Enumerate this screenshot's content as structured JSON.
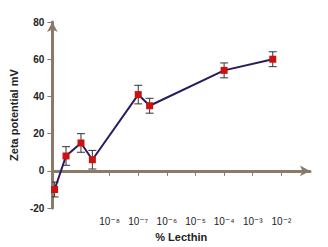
{
  "chart_data": {
    "type": "line",
    "x_label": "% Lecthin",
    "y_label": "Zeta potential mV",
    "log": "x",
    "grid": false,
    "x": [
      1.2e-10,
      3e-10,
      1e-09,
      2.5e-09,
      1e-07,
      2.5e-07,
      0.0001,
      0.005
    ],
    "series": [
      {
        "color": "#cc1111",
        "line_color": "#2b1a5c",
        "marker": "square",
        "values": [
          -10,
          8,
          15,
          6,
          41,
          35,
          54,
          60
        ],
        "errors": [
          4,
          5,
          5,
          5,
          5,
          4,
          4,
          4
        ]
      }
    ],
    "xlim": [
      1e-10,
      0.1
    ],
    "xticks": [
      {
        "value": 1e-08,
        "label": "10⁻⁸"
      },
      {
        "value": 1e-07,
        "label": "10⁻⁷"
      },
      {
        "value": 1e-06,
        "label": "10⁻⁶"
      },
      {
        "value": 1e-05,
        "label": "10⁻⁵"
      },
      {
        "value": 0.0001,
        "label": "10⁻⁴"
      },
      {
        "value": 0.001,
        "label": "10⁻³"
      },
      {
        "value": 0.01,
        "label": "10⁻²"
      }
    ],
    "ylim": [
      -20,
      80
    ],
    "yticks": [
      -20,
      0,
      20,
      40,
      60,
      80
    ]
  }
}
